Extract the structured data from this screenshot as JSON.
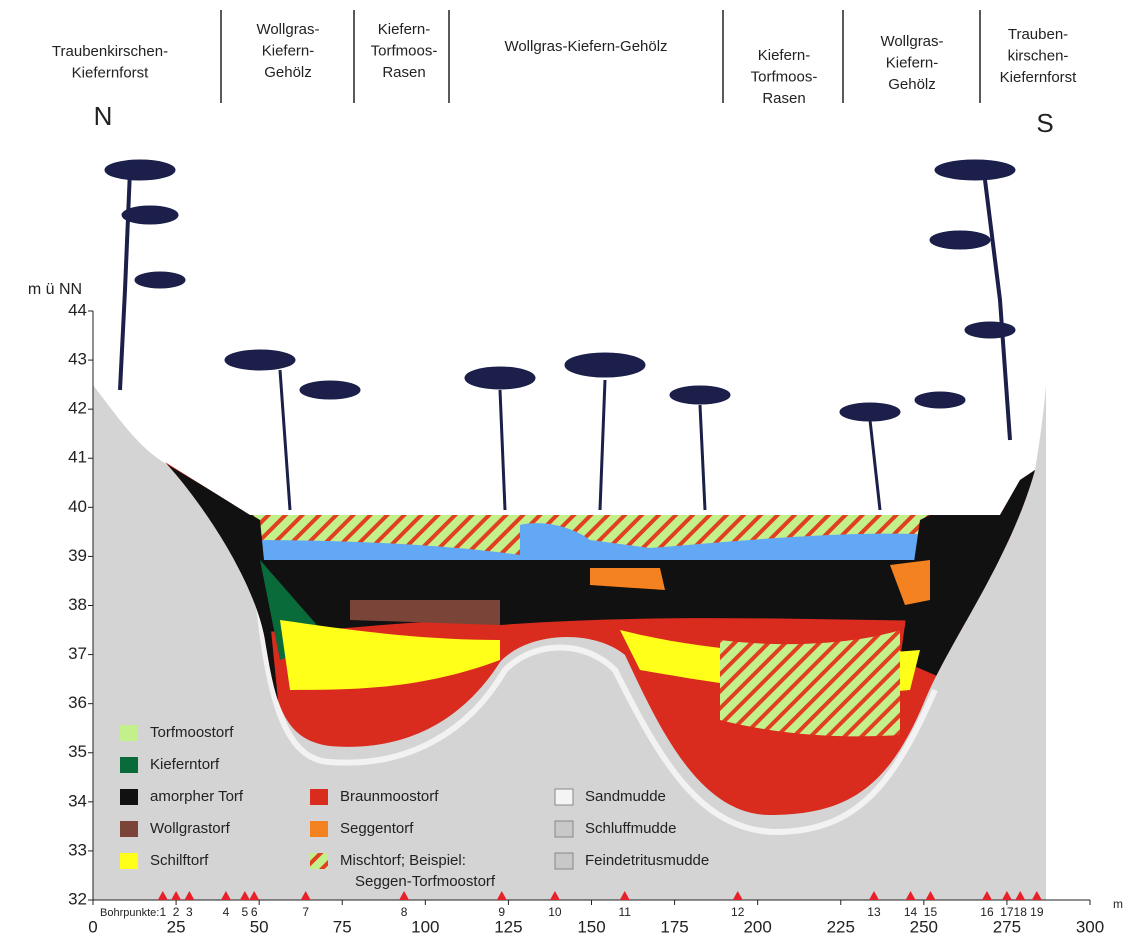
{
  "zones": [
    {
      "lines": [
        "Traubenkirschen-",
        "Kiefernforst"
      ]
    },
    {
      "lines": [
        "Wollgras-",
        "Kiefern-",
        "Gehölz"
      ]
    },
    {
      "lines": [
        "Kiefern-",
        "Torfmoos-",
        "Rasen"
      ]
    },
    {
      "lines": [
        "Wollgras-Kiefern-Gehölz"
      ]
    },
    {
      "lines": [
        "Kiefern-",
        "Torfmoos-",
        "Rasen"
      ]
    },
    {
      "lines": [
        "Wollgras-",
        "Kiefern-",
        "Gehölz"
      ]
    },
    {
      "lines": [
        "Trauben-",
        "kirschen-",
        "Kiefernforst"
      ]
    }
  ],
  "north": "N",
  "south": "S",
  "axes": {
    "y_label": "m ü NN",
    "x_unit": "m",
    "xlim": [
      0,
      300
    ],
    "xticks": [
      0,
      25,
      50,
      75,
      100,
      125,
      150,
      175,
      200,
      225,
      250,
      275,
      300
    ],
    "ylim": [
      32,
      44
    ],
    "yticks": [
      32,
      33,
      34,
      35,
      36,
      37,
      38,
      39,
      40,
      41,
      42,
      43,
      44
    ]
  },
  "boreholes": {
    "label": "Bohrpunkte:",
    "color": "#e8202a",
    "points": [
      {
        "number": 1,
        "x": 21
      },
      {
        "number": 2,
        "x": 25
      },
      {
        "number": 3,
        "x": 29
      },
      {
        "number": 4,
        "x": 40
      },
      {
        "number": 5,
        "x": 45.7
      },
      {
        "number": 6,
        "x": 48.5
      },
      {
        "number": 7,
        "x": 64
      },
      {
        "number": 8,
        "x": 93.6
      },
      {
        "number": 9,
        "x": 123
      },
      {
        "number": 10,
        "x": 139
      },
      {
        "number": 11,
        "x": 160
      },
      {
        "number": 12,
        "x": 194
      },
      {
        "number": 13,
        "x": 235
      },
      {
        "number": 14,
        "x": 246
      },
      {
        "number": 15,
        "x": 252
      },
      {
        "number": 16,
        "x": 269
      },
      {
        "number": 17,
        "x": 275
      },
      {
        "number": 18,
        "x": 279
      },
      {
        "number": 19,
        "x": 284
      }
    ]
  },
  "legend": [
    [
      {
        "label": "Torfmoostorf",
        "color": "#c3f08a"
      },
      {
        "label": "Kieferntorf",
        "color": "#0a6b3a"
      },
      {
        "label": "amorpher Torf",
        "color": "#111111"
      },
      {
        "label": "Wollgrastorf",
        "color": "#7a4438"
      },
      {
        "label": "Schilftorf",
        "color": "#ffff1a"
      }
    ],
    [
      {
        "label": "Braunmoostorf",
        "color": "#d92b1e"
      },
      {
        "label": "Seggentorf",
        "color": "#f58220"
      },
      {
        "label": "Mischtorf; Beispiel:",
        "second_line": "Seggen-Torfmoostorf",
        "color": "#c3f08a",
        "hatch": "#e04020"
      }
    ],
    [
      {
        "label": "Sandmudde",
        "color": "#f4f4f4"
      },
      {
        "label": "Schluffmudde",
        "color": "#c8c8c8"
      },
      {
        "label": "Feindetritusmudde",
        "color": "#c8c8c8"
      }
    ]
  ]
}
